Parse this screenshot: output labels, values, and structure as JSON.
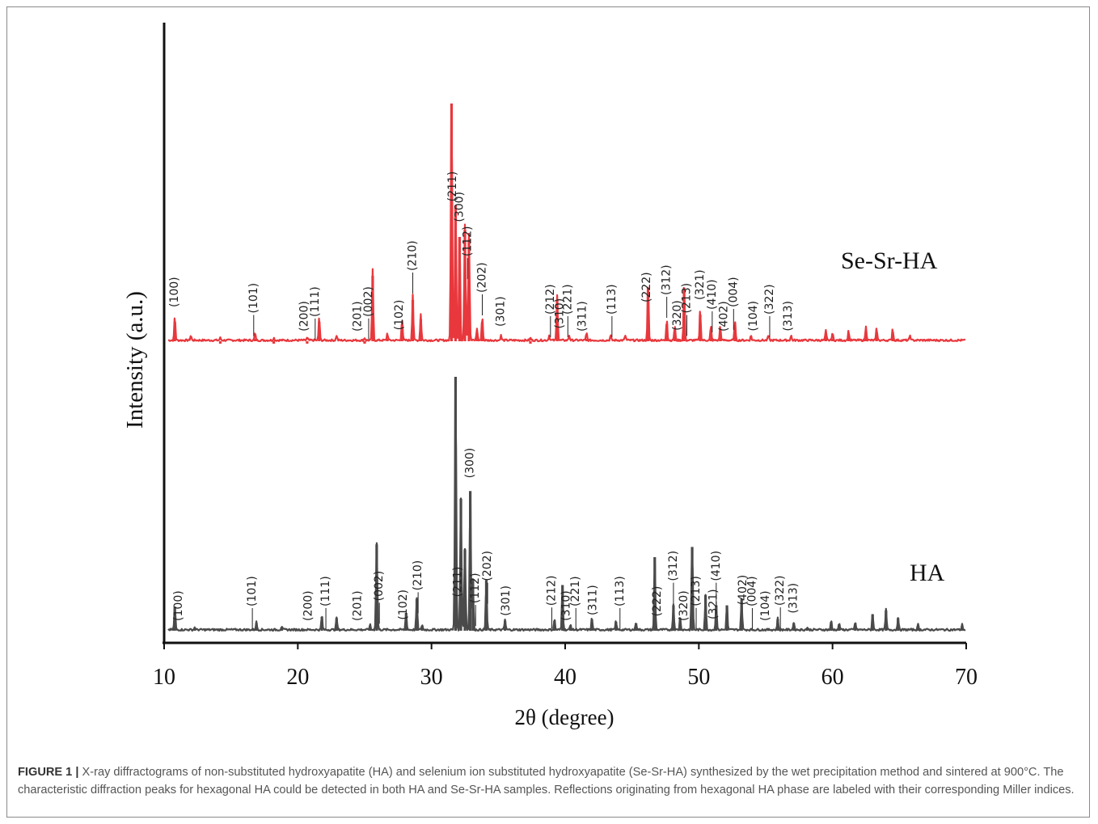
{
  "chart_data": {
    "type": "line",
    "title": "",
    "xlabel": "2θ (degree)",
    "ylabel": "Intensity (a.u.)",
    "xlim": [
      10,
      70
    ],
    "xticks": [
      "10",
      "20",
      "30",
      "40",
      "50",
      "60",
      "70"
    ],
    "yticks": [],
    "grid": false,
    "series": [
      {
        "name": "Se-Sr-HA",
        "color": "#e8383d",
        "baseline": 0.02,
        "peaks": [
          {
            "x": 10.8,
            "y": 0.1
          },
          {
            "x": 12.0,
            "y": 0.02
          },
          {
            "x": 14.2,
            "y": 0.01
          },
          {
            "x": 16.8,
            "y": 0.03
          },
          {
            "x": 18.2,
            "y": 0.01
          },
          {
            "x": 20.7,
            "y": 0.01
          },
          {
            "x": 21.6,
            "y": 0.1
          },
          {
            "x": 22.9,
            "y": 0.02
          },
          {
            "x": 25.0,
            "y": 0.01
          },
          {
            "x": 25.6,
            "y": 0.29
          },
          {
            "x": 26.7,
            "y": 0.03
          },
          {
            "x": 27.8,
            "y": 0.09
          },
          {
            "x": 28.6,
            "y": 0.19
          },
          {
            "x": 29.2,
            "y": 0.11
          },
          {
            "x": 31.5,
            "y": 1.0
          },
          {
            "x": 31.8,
            "y": 0.58
          },
          {
            "x": 32.1,
            "y": 0.45
          },
          {
            "x": 32.5,
            "y": 0.48
          },
          {
            "x": 32.8,
            "y": 0.44
          },
          {
            "x": 33.4,
            "y": 0.05
          },
          {
            "x": 33.8,
            "y": 0.1
          },
          {
            "x": 35.2,
            "y": 0.02
          },
          {
            "x": 37.4,
            "y": 0.01
          },
          {
            "x": 38.8,
            "y": 0.02
          },
          {
            "x": 39.4,
            "y": 0.19
          },
          {
            "x": 40.3,
            "y": 0.02
          },
          {
            "x": 41.6,
            "y": 0.03
          },
          {
            "x": 43.4,
            "y": 0.02
          },
          {
            "x": 44.5,
            "y": 0.02
          },
          {
            "x": 46.2,
            "y": 0.24
          },
          {
            "x": 47.6,
            "y": 0.09
          },
          {
            "x": 48.2,
            "y": 0.06
          },
          {
            "x": 48.9,
            "y": 0.24
          },
          {
            "x": 50.1,
            "y": 0.13
          },
          {
            "x": 50.9,
            "y": 0.06
          },
          {
            "x": 51.6,
            "y": 0.06
          },
          {
            "x": 52.7,
            "y": 0.08
          },
          {
            "x": 53.9,
            "y": 0.02
          },
          {
            "x": 55.2,
            "y": 0.02
          },
          {
            "x": 56.9,
            "y": 0.02
          },
          {
            "x": 59.5,
            "y": 0.04
          },
          {
            "x": 60.0,
            "y": 0.03
          },
          {
            "x": 61.2,
            "y": 0.04
          },
          {
            "x": 62.5,
            "y": 0.06
          },
          {
            "x": 63.3,
            "y": 0.05
          },
          {
            "x": 64.5,
            "y": 0.05
          },
          {
            "x": 65.8,
            "y": 0.02
          }
        ]
      },
      {
        "name": "HA",
        "color": "#4a4a4a",
        "baseline": 0.0,
        "peaks": [
          {
            "x": 10.8,
            "y": 0.095
          },
          {
            "x": 12.3,
            "y": 0.01
          },
          {
            "x": 16.9,
            "y": 0.03
          },
          {
            "x": 18.8,
            "y": 0.015
          },
          {
            "x": 21.8,
            "y": 0.055
          },
          {
            "x": 22.9,
            "y": 0.05
          },
          {
            "x": 25.4,
            "y": 0.02
          },
          {
            "x": 25.9,
            "y": 0.34
          },
          {
            "x": 28.1,
            "y": 0.07
          },
          {
            "x": 28.9,
            "y": 0.125
          },
          {
            "x": 29.3,
            "y": 0.02
          },
          {
            "x": 31.8,
            "y": 1.0
          },
          {
            "x": 32.2,
            "y": 0.52
          },
          {
            "x": 32.5,
            "y": 0.32
          },
          {
            "x": 32.9,
            "y": 0.55
          },
          {
            "x": 33.1,
            "y": 0.2
          },
          {
            "x": 34.1,
            "y": 0.2
          },
          {
            "x": 35.5,
            "y": 0.04
          },
          {
            "x": 39.2,
            "y": 0.04
          },
          {
            "x": 39.8,
            "y": 0.18
          },
          {
            "x": 40.4,
            "y": 0.02
          },
          {
            "x": 42.0,
            "y": 0.045
          },
          {
            "x": 43.8,
            "y": 0.035
          },
          {
            "x": 45.3,
            "y": 0.03
          },
          {
            "x": 46.7,
            "y": 0.29
          },
          {
            "x": 48.1,
            "y": 0.1
          },
          {
            "x": 48.6,
            "y": 0.05
          },
          {
            "x": 49.5,
            "y": 0.33
          },
          {
            "x": 50.5,
            "y": 0.14
          },
          {
            "x": 51.3,
            "y": 0.1
          },
          {
            "x": 52.1,
            "y": 0.1
          },
          {
            "x": 53.2,
            "y": 0.125
          },
          {
            "x": 55.9,
            "y": 0.045
          },
          {
            "x": 57.1,
            "y": 0.03
          },
          {
            "x": 58.1,
            "y": 0.01
          },
          {
            "x": 59.9,
            "y": 0.035
          },
          {
            "x": 60.5,
            "y": 0.025
          },
          {
            "x": 61.7,
            "y": 0.03
          },
          {
            "x": 63.0,
            "y": 0.065
          },
          {
            "x": 64.0,
            "y": 0.08
          },
          {
            "x": 64.9,
            "y": 0.05
          },
          {
            "x": 66.4,
            "y": 0.02
          },
          {
            "x": 69.7,
            "y": 0.02
          }
        ]
      }
    ],
    "annotations": [
      {
        "series": "Se-Sr-HA",
        "text": "(100)",
        "x": 10.8
      },
      {
        "series": "Se-Sr-HA",
        "text": "(101)",
        "x": 16.7
      },
      {
        "series": "Se-Sr-HA",
        "text": "(200)",
        "x": 20.5
      },
      {
        "series": "Se-Sr-HA",
        "text": "(111)",
        "x": 21.3
      },
      {
        "series": "Se-Sr-HA",
        "text": "(201)",
        "x": 24.5
      },
      {
        "series": "Se-Sr-HA",
        "text": "(002)",
        "x": 25.3
      },
      {
        "series": "Se-Sr-HA",
        "text": "(102)",
        "x": 27.6
      },
      {
        "series": "Se-Sr-HA",
        "text": "(210)",
        "x": 28.6
      },
      {
        "series": "Se-Sr-HA",
        "text": "(211)",
        "x": 31.6
      },
      {
        "series": "Se-Sr-HA",
        "text": "(112)",
        "x": 32.7
      },
      {
        "series": "Se-Sr-HA",
        "text": "(300)",
        "x": 32.1
      },
      {
        "series": "Se-Sr-HA",
        "text": "(202)",
        "x": 33.8
      },
      {
        "series": "Se-Sr-HA",
        "text": "(301)",
        "x": 35.2
      },
      {
        "series": "Se-Sr-HA",
        "text": "(212)",
        "x": 38.9
      },
      {
        "series": "Se-Sr-HA",
        "text": "(310)",
        "x": 39.6
      },
      {
        "series": "Se-Sr-HA",
        "text": "(221)",
        "x": 40.2
      },
      {
        "series": "Se-Sr-HA",
        "text": "(311)",
        "x": 41.3
      },
      {
        "series": "Se-Sr-HA",
        "text": "(113)",
        "x": 43.5
      },
      {
        "series": "Se-Sr-HA",
        "text": "(222)",
        "x": 46.1
      },
      {
        "series": "Se-Sr-HA",
        "text": "(312)",
        "x": 47.6
      },
      {
        "series": "Se-Sr-HA",
        "text": "(320)",
        "x": 48.4
      },
      {
        "series": "Se-Sr-HA",
        "text": "(213)",
        "x": 49.1
      },
      {
        "series": "Se-Sr-HA",
        "text": "(321)",
        "x": 50.1
      },
      {
        "series": "Se-Sr-HA",
        "text": "(410)",
        "x": 51.0
      },
      {
        "series": "Se-Sr-HA",
        "text": "(402)",
        "x": 51.9
      },
      {
        "series": "Se-Sr-HA",
        "text": "(004)",
        "x": 52.6
      },
      {
        "series": "Se-Sr-HA",
        "text": "(104)",
        "x": 54.1
      },
      {
        "series": "Se-Sr-HA",
        "text": "(322)",
        "x": 55.3
      },
      {
        "series": "Se-Sr-HA",
        "text": "(313)",
        "x": 56.7
      },
      {
        "series": "HA",
        "text": "(100)",
        "x": 11.1
      },
      {
        "series": "HA",
        "text": "(101)",
        "x": 16.6
      },
      {
        "series": "HA",
        "text": "(200)",
        "x": 20.8
      },
      {
        "series": "HA",
        "text": "(111)",
        "x": 22.1
      },
      {
        "series": "HA",
        "text": "(201)",
        "x": 24.5
      },
      {
        "series": "HA",
        "text": "(002)",
        "x": 26.1
      },
      {
        "series": "HA",
        "text": "(102)",
        "x": 27.9
      },
      {
        "series": "HA",
        "text": "(210)",
        "x": 29.0
      },
      {
        "series": "HA",
        "text": "(211)",
        "x": 32.0
      },
      {
        "series": "HA",
        "text": "(112)",
        "x": 33.3
      },
      {
        "series": "HA",
        "text": "(300)",
        "x": 32.9
      },
      {
        "series": "HA",
        "text": "(202)",
        "x": 34.2
      },
      {
        "series": "HA",
        "text": "(301)",
        "x": 35.6
      },
      {
        "series": "HA",
        "text": "(212)",
        "x": 39.0
      },
      {
        "series": "HA",
        "text": "(310)",
        "x": 40.1
      },
      {
        "series": "HA",
        "text": "(221)",
        "x": 40.8
      },
      {
        "series": "HA",
        "text": "(311)",
        "x": 42.1
      },
      {
        "series": "HA",
        "text": "(113)",
        "x": 44.1
      },
      {
        "series": "HA",
        "text": "(222)",
        "x": 46.9
      },
      {
        "series": "HA",
        "text": "(312)",
        "x": 48.1
      },
      {
        "series": "HA",
        "text": "(320)",
        "x": 48.9
      },
      {
        "series": "HA",
        "text": "(213)",
        "x": 49.8
      },
      {
        "series": "HA",
        "text": "(321)",
        "x": 51.1
      },
      {
        "series": "HA",
        "text": "(410)",
        "x": 51.3
      },
      {
        "series": "HA",
        "text": "(402)",
        "x": 53.3
      },
      {
        "series": "HA",
        "text": "(004)",
        "x": 54.0
      },
      {
        "series": "HA",
        "text": "(104)",
        "x": 55.0
      },
      {
        "series": "HA",
        "text": "(322)",
        "x": 56.1
      },
      {
        "series": "HA",
        "text": "(313)",
        "x": 57.1
      }
    ]
  },
  "caption": {
    "label": "FIGURE 1 |",
    "text": " X-ray diffractograms of non-substituted hydroxyapatite (HA) and selenium ion substituted hydroxyapatite (Se-Sr-HA) synthesized by the wet precipitation method and sintered at 900°C. The characteristic diffraction peaks for hexagonal HA could be detected in both HA and Se-Sr-HA samples. Reflections originating from hexagonal HA phase are labeled with their corresponding Miller indices."
  },
  "colors": {
    "highlight_leader": "#3a78c9",
    "axis": "#111111"
  }
}
